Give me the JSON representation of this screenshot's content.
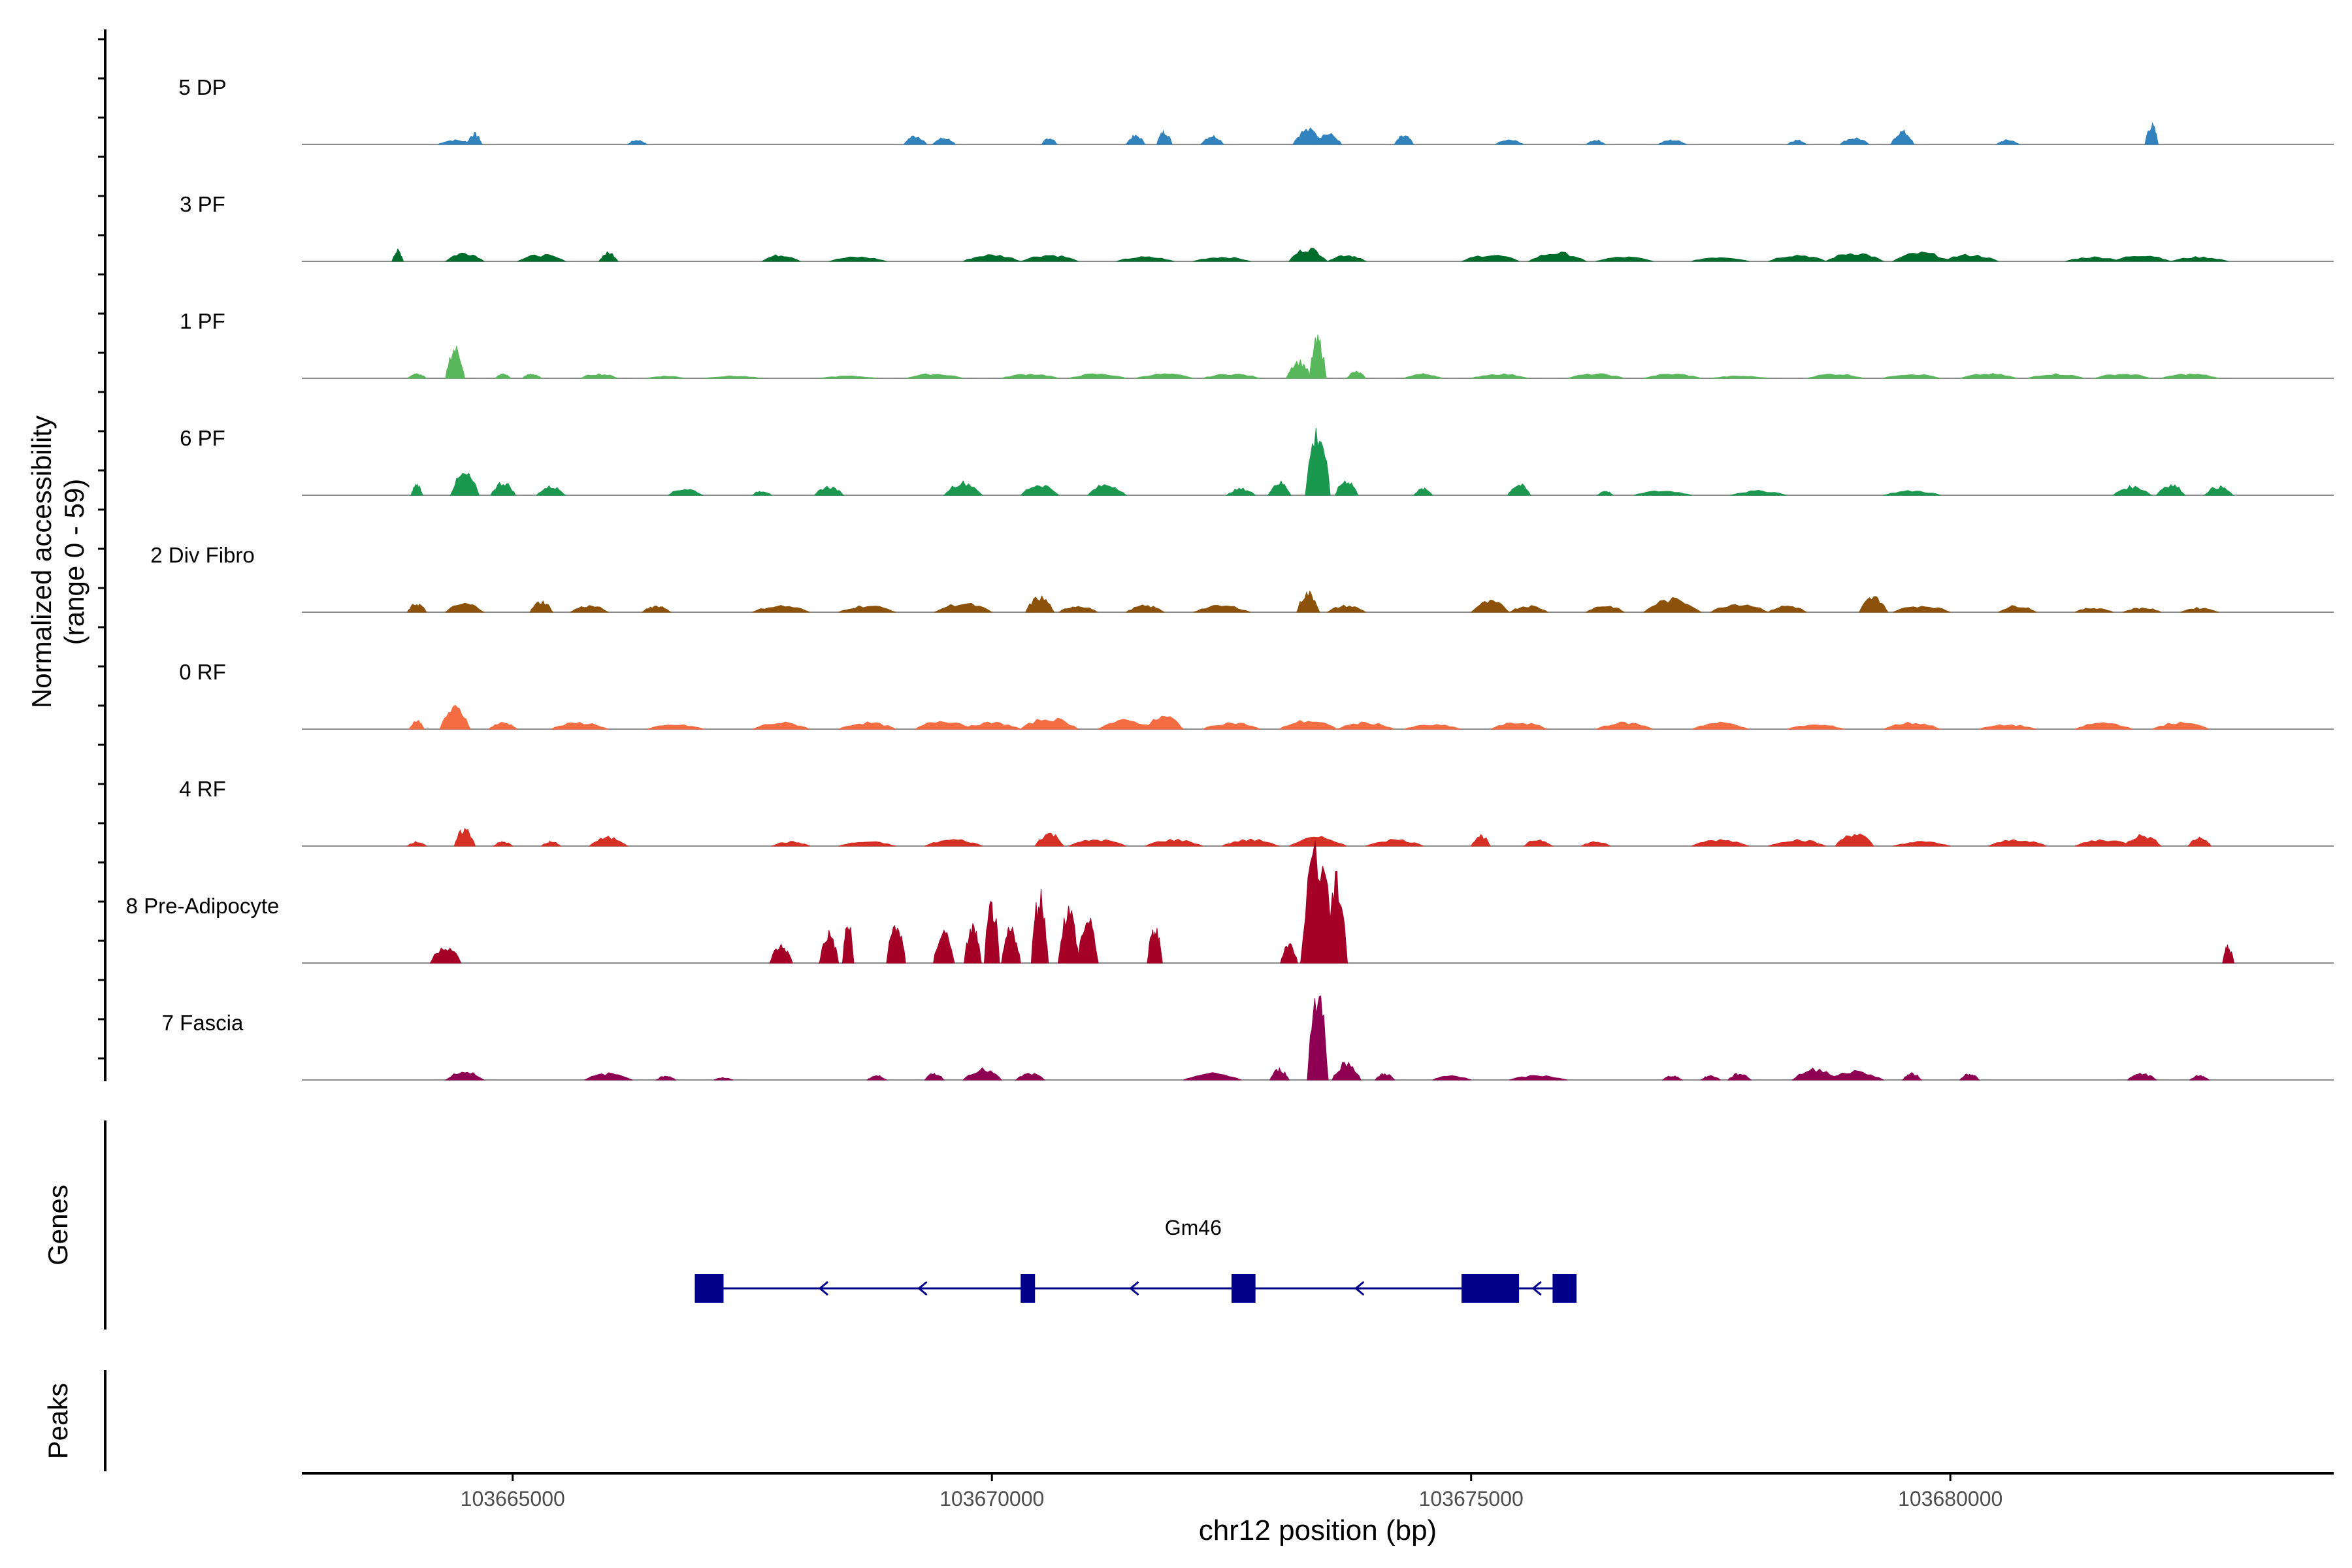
{
  "chart_data": {
    "type": "area",
    "title": "",
    "ylabel_line1": "Normalized accessibility",
    "ylabel_line2": "(range 0 - 59)",
    "xlabel": "chr12 position (bp)",
    "xlim": [
      103662800,
      103684000
    ],
    "ylim": [
      0,
      59
    ],
    "xticks": [
      103665000,
      103670000,
      103675000,
      103680000
    ],
    "xtick_labels": [
      "103665000",
      "103670000",
      "103675000",
      "103680000"
    ],
    "series": [
      {
        "name": "5 DP",
        "color": "#3182bd",
        "peaks": [
          [
            103664400,
            2,
            180
          ],
          [
            103664600,
            5,
            80
          ],
          [
            103666300,
            2,
            100
          ],
          [
            103669200,
            4,
            120
          ],
          [
            103669500,
            3,
            120
          ],
          [
            103670600,
            3,
            80
          ],
          [
            103671500,
            4,
            100
          ],
          [
            103671800,
            6,
            80
          ],
          [
            103672300,
            4,
            120
          ],
          [
            103673300,
            7,
            160
          ],
          [
            103673500,
            5,
            150
          ],
          [
            103674300,
            4,
            100
          ],
          [
            103675400,
            2,
            150
          ],
          [
            103676300,
            2,
            100
          ],
          [
            103677100,
            2,
            150
          ],
          [
            103678400,
            2,
            100
          ],
          [
            103679000,
            3,
            150
          ],
          [
            103679500,
            6,
            120
          ],
          [
            103680600,
            2,
            120
          ],
          [
            103682100,
            9,
            70
          ]
        ]
      },
      {
        "name": "3 PF",
        "color": "#006d2c",
        "peaks": [
          [
            103663800,
            5,
            60
          ],
          [
            103664500,
            4,
            200
          ],
          [
            103665300,
            3,
            250
          ],
          [
            103666000,
            4,
            100
          ],
          [
            103667800,
            3,
            200
          ],
          [
            103668600,
            2,
            300
          ],
          [
            103670000,
            3,
            300
          ],
          [
            103670600,
            3,
            300
          ],
          [
            103671600,
            2,
            300
          ],
          [
            103672400,
            2,
            300
          ],
          [
            103673300,
            6,
            200
          ],
          [
            103673700,
            3,
            200
          ],
          [
            103675200,
            3,
            300
          ],
          [
            103675900,
            4,
            300
          ],
          [
            103676600,
            2,
            300
          ],
          [
            103677600,
            2,
            300
          ],
          [
            103678400,
            3,
            300
          ],
          [
            103679000,
            4,
            300
          ],
          [
            103679700,
            4,
            300
          ],
          [
            103680200,
            3,
            300
          ],
          [
            103681500,
            2,
            300
          ],
          [
            103682000,
            3,
            300
          ],
          [
            103682600,
            2,
            300
          ]
        ]
      },
      {
        "name": "1 PF",
        "color": "#5ab85c",
        "peaks": [
          [
            103664000,
            2,
            100
          ],
          [
            103664400,
            14,
            100
          ],
          [
            103664900,
            2,
            80
          ],
          [
            103665200,
            2,
            100
          ],
          [
            103665900,
            2,
            200
          ],
          [
            103666600,
            1,
            200
          ],
          [
            103667300,
            1,
            300
          ],
          [
            103668500,
            1,
            300
          ],
          [
            103669400,
            2,
            300
          ],
          [
            103670400,
            2,
            300
          ],
          [
            103671100,
            2,
            300
          ],
          [
            103671800,
            2,
            300
          ],
          [
            103672500,
            2,
            300
          ],
          [
            103673200,
            8,
            130
          ],
          [
            103673400,
            18,
            90
          ],
          [
            103673800,
            3,
            100
          ],
          [
            103674500,
            2,
            200
          ],
          [
            103675300,
            2,
            300
          ],
          [
            103676300,
            2,
            300
          ],
          [
            103677100,
            2,
            300
          ],
          [
            103677800,
            1,
            300
          ],
          [
            103678800,
            2,
            300
          ],
          [
            103679600,
            2,
            300
          ],
          [
            103680400,
            2,
            300
          ],
          [
            103681100,
            2,
            300
          ],
          [
            103681800,
            2,
            300
          ],
          [
            103682500,
            2,
            300
          ]
        ]
      },
      {
        "name": "6 PF",
        "color": "#1a9850",
        "peaks": [
          [
            103664000,
            5,
            60
          ],
          [
            103664500,
            10,
            150
          ],
          [
            103664900,
            6,
            130
          ],
          [
            103665400,
            4,
            150
          ],
          [
            103666800,
            3,
            180
          ],
          [
            103667600,
            2,
            100
          ],
          [
            103668300,
            4,
            150
          ],
          [
            103669700,
            6,
            200
          ],
          [
            103670500,
            5,
            200
          ],
          [
            103671200,
            5,
            200
          ],
          [
            103672600,
            3,
            150
          ],
          [
            103673000,
            6,
            120
          ],
          [
            103673400,
            30,
            130
          ],
          [
            103673700,
            7,
            120
          ],
          [
            103674500,
            3,
            100
          ],
          [
            103675500,
            5,
            120
          ],
          [
            103676400,
            2,
            80
          ],
          [
            103677000,
            2,
            300
          ],
          [
            103678000,
            2,
            300
          ],
          [
            103679600,
            2,
            300
          ],
          [
            103681900,
            4,
            200
          ],
          [
            103682300,
            5,
            150
          ],
          [
            103682800,
            4,
            150
          ]
        ]
      },
      {
        "name": "2 Div Fibro",
        "color": "#8c510a",
        "peaks": [
          [
            103664000,
            4,
            100
          ],
          [
            103664500,
            4,
            200
          ],
          [
            103665300,
            5,
            120
          ],
          [
            103665800,
            3,
            200
          ],
          [
            103666500,
            3,
            150
          ],
          [
            103667800,
            3,
            300
          ],
          [
            103668700,
            3,
            300
          ],
          [
            103669700,
            4,
            300
          ],
          [
            103670500,
            7,
            150
          ],
          [
            103670900,
            3,
            200
          ],
          [
            103671600,
            3,
            200
          ],
          [
            103672400,
            3,
            300
          ],
          [
            103673300,
            9,
            120
          ],
          [
            103673700,
            3,
            200
          ],
          [
            103675200,
            5,
            200
          ],
          [
            103675600,
            3,
            200
          ],
          [
            103676400,
            3,
            200
          ],
          [
            103677100,
            6,
            300
          ],
          [
            103677800,
            4,
            300
          ],
          [
            103678300,
            3,
            200
          ],
          [
            103679200,
            7,
            150
          ],
          [
            103679700,
            3,
            300
          ],
          [
            103680700,
            3,
            200
          ],
          [
            103681500,
            2,
            200
          ],
          [
            103682000,
            2,
            200
          ],
          [
            103682600,
            2,
            200
          ]
        ]
      },
      {
        "name": "0 RF",
        "color": "#f46d43",
        "peaks": [
          [
            103664000,
            4,
            80
          ],
          [
            103664400,
            10,
            160
          ],
          [
            103664900,
            3,
            150
          ],
          [
            103665700,
            3,
            300
          ],
          [
            103666700,
            2,
            300
          ],
          [
            103667800,
            3,
            300
          ],
          [
            103668700,
            3,
            300
          ],
          [
            103669500,
            4,
            300
          ],
          [
            103670000,
            3,
            300
          ],
          [
            103670600,
            5,
            300
          ],
          [
            103671400,
            4,
            300
          ],
          [
            103671800,
            6,
            200
          ],
          [
            103672500,
            3,
            300
          ],
          [
            103673300,
            4,
            300
          ],
          [
            103673900,
            3,
            300
          ],
          [
            103674600,
            2,
            300
          ],
          [
            103675500,
            3,
            300
          ],
          [
            103676600,
            3,
            300
          ],
          [
            103677600,
            3,
            300
          ],
          [
            103678600,
            2,
            300
          ],
          [
            103679600,
            3,
            300
          ],
          [
            103680600,
            2,
            300
          ],
          [
            103681600,
            3,
            300
          ],
          [
            103682400,
            3,
            300
          ]
        ]
      },
      {
        "name": "4 RF",
        "color": "#d73027",
        "peaks": [
          [
            103664000,
            2,
            100
          ],
          [
            103664500,
            8,
            110
          ],
          [
            103664900,
            2,
            100
          ],
          [
            103665400,
            2,
            100
          ],
          [
            103666000,
            4,
            200
          ],
          [
            103667900,
            2,
            200
          ],
          [
            103668700,
            2,
            300
          ],
          [
            103669600,
            3,
            300
          ],
          [
            103670600,
            6,
            150
          ],
          [
            103671100,
            3,
            300
          ],
          [
            103671900,
            3,
            300
          ],
          [
            103672700,
            3,
            300
          ],
          [
            103673400,
            4,
            300
          ],
          [
            103674200,
            3,
            300
          ],
          [
            103675100,
            5,
            100
          ],
          [
            103675700,
            3,
            150
          ],
          [
            103676300,
            2,
            150
          ],
          [
            103677600,
            3,
            300
          ],
          [
            103678400,
            3,
            300
          ],
          [
            103679000,
            6,
            200
          ],
          [
            103679700,
            2,
            300
          ],
          [
            103680700,
            3,
            300
          ],
          [
            103681600,
            3,
            300
          ],
          [
            103682000,
            5,
            200
          ],
          [
            103682600,
            4,
            120
          ]
        ]
      },
      {
        "name": "8 Pre-Adipocyte",
        "color": "#a50026",
        "peaks": [
          [
            103664300,
            8,
            160
          ],
          [
            103667800,
            8,
            120
          ],
          [
            103668300,
            14,
            100
          ],
          [
            103668500,
            18,
            60
          ],
          [
            103669000,
            18,
            100
          ],
          [
            103669500,
            15,
            110
          ],
          [
            103669800,
            17,
            90
          ],
          [
            103670000,
            27,
            80
          ],
          [
            103670200,
            16,
            100
          ],
          [
            103670500,
            32,
            90
          ],
          [
            103670800,
            25,
            110
          ],
          [
            103671000,
            20,
            110
          ],
          [
            103671700,
            16,
            80
          ],
          [
            103673100,
            9,
            90
          ],
          [
            103673400,
            55,
            180
          ],
          [
            103673600,
            38,
            110
          ],
          [
            103682900,
            8,
            60
          ]
        ]
      },
      {
        "name": "7 Fascia",
        "color": "#8e0152",
        "peaks": [
          [
            103664500,
            4,
            200
          ],
          [
            103666000,
            3,
            250
          ],
          [
            103666600,
            2,
            100
          ],
          [
            103667200,
            1,
            100
          ],
          [
            103668800,
            2,
            100
          ],
          [
            103669400,
            3,
            100
          ],
          [
            103669900,
            5,
            200
          ],
          [
            103670400,
            3,
            150
          ],
          [
            103672300,
            3,
            300
          ],
          [
            103673000,
            5,
            100
          ],
          [
            103673400,
            43,
            110
          ],
          [
            103673700,
            8,
            150
          ],
          [
            103674100,
            3,
            100
          ],
          [
            103674800,
            2,
            200
          ],
          [
            103675700,
            2,
            300
          ],
          [
            103677100,
            2,
            100
          ],
          [
            103677500,
            2,
            100
          ],
          [
            103677800,
            3,
            120
          ],
          [
            103678600,
            5,
            250
          ],
          [
            103679000,
            4,
            300
          ],
          [
            103679600,
            3,
            100
          ],
          [
            103680200,
            3,
            100
          ],
          [
            103682000,
            3,
            150
          ],
          [
            103682600,
            2,
            100
          ]
        ]
      }
    ],
    "genes": [
      {
        "name": "Gm46",
        "strand": "-",
        "start": 103666900,
        "end": 103676100,
        "exons": [
          [
            103666900,
            103667200
          ],
          [
            103670300,
            103670450
          ],
          [
            103672500,
            103672750
          ],
          [
            103674900,
            103675500
          ],
          [
            103675850,
            103676100
          ]
        ]
      }
    ],
    "track_labels": {
      "genes": "Genes",
      "peaks": "Peaks"
    }
  }
}
